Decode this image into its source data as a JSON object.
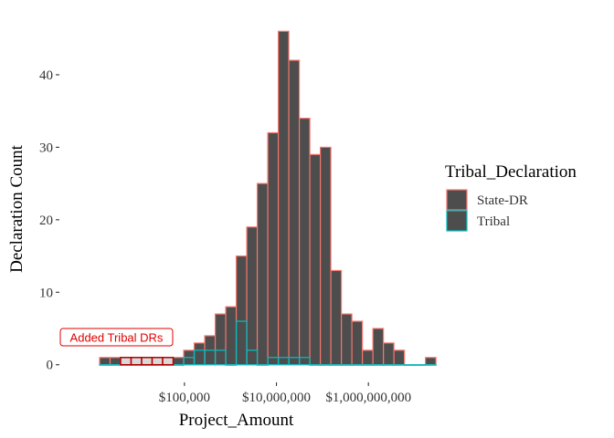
{
  "chart_data": {
    "type": "bar",
    "subtype": "histogram",
    "xlabel": "Project_Amount",
    "ylabel": "Declaration Count",
    "x_scale": "log10",
    "x_range": [
      2.3,
      9.95
    ],
    "x_ticks": [
      {
        "value": 5,
        "label": "$100,000"
      },
      {
        "value": 7,
        "label": "$10,000,000"
      },
      {
        "value": 9,
        "label": "$1,000,000,000"
      }
    ],
    "ylim": [
      -2.3,
      48.3
    ],
    "y_ticks": [
      0,
      10,
      20,
      30,
      40
    ],
    "grid": false,
    "bin_width_log10": 0.2286,
    "bin_start_log10": 3.1545,
    "series": [
      {
        "name": "State-DR",
        "outline_color": "#f8766d",
        "fill_color": "#4d4d4d",
        "counts": [
          1,
          1,
          1,
          1,
          1,
          1,
          1,
          1,
          2,
          3,
          4,
          7,
          8,
          15,
          19,
          25,
          32,
          46,
          42,
          34,
          29,
          30,
          13,
          7,
          6,
          2,
          5,
          3,
          2,
          0,
          0,
          1
        ]
      },
      {
        "name": "Tribal",
        "outline_color": "#00bfc4",
        "fill_color": "#4d4d4d",
        "counts": [
          0,
          0,
          0,
          0,
          0,
          0,
          0,
          0,
          1,
          2,
          2,
          2,
          0,
          6,
          2,
          0,
          1,
          1,
          1,
          1,
          0,
          0,
          0,
          0,
          0,
          0,
          0,
          0,
          0,
          0,
          0,
          0
        ]
      }
    ],
    "highlight": {
      "bins": [
        2,
        3,
        4,
        5,
        6
      ],
      "fill_color": "#d9d9d9",
      "outline_color": "#b30000"
    },
    "legend": {
      "title": "Tribal_Declaration",
      "position": "right",
      "items": [
        "State-DR",
        "Tribal"
      ]
    },
    "annotation": {
      "text": "Added Tribal DRs",
      "color": "#e00000"
    }
  }
}
